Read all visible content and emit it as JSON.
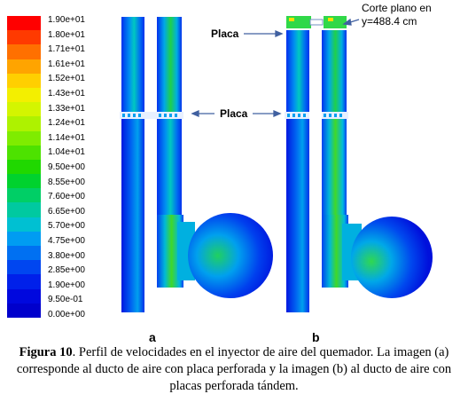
{
  "legend": {
    "labels": [
      "1.90e+01",
      "1.80e+01",
      "1.71e+01",
      "1.61e+01",
      "1.52e+01",
      "1.43e+01",
      "1.33e+01",
      "1.24e+01",
      "1.14e+01",
      "1.04e+01",
      "9.50e+00",
      "8.55e+00",
      "7.60e+00",
      "6.65e+00",
      "5.70e+00",
      "4.75e+00",
      "3.80e+00",
      "2.85e+00",
      "1.90e+00",
      "9.50e-01",
      "0.00e+00"
    ],
    "colors": [
      "#ff0000",
      "#ff3a00",
      "#ff7000",
      "#ffa400",
      "#ffcf00",
      "#f3ef00",
      "#d4f500",
      "#aef200",
      "#7fec00",
      "#4de200",
      "#20d800",
      "#00d22e",
      "#00cf66",
      "#00c9a0",
      "#00c0d2",
      "#009cf2",
      "#0070f2",
      "#0046f0",
      "#0020ea",
      "#0008de",
      "#0000cc"
    ]
  },
  "annotations": {
    "placa_top": "Placa",
    "placa_mid": "Placa",
    "corte_line1": "Corte plano en",
    "corte_line2": "y=488.4 cm"
  },
  "panels": {
    "a_label": "a",
    "b_label": "b"
  },
  "caption": {
    "figure_label": "Figura 10",
    "text": ". Perfil de velocidades en el inyector de aire del quemador. La imagen (a) corresponde al ducto de aire con placa perforada y la imagen (b) al ducto de aire con placas perforada tándem."
  }
}
